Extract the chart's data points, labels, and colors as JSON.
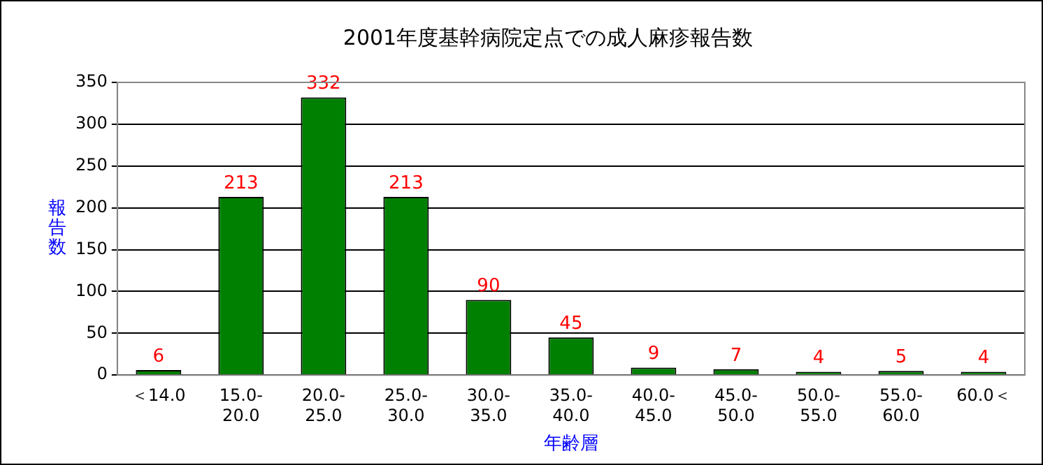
{
  "chart_data": {
    "type": "bar",
    "title": "2001年度基幹病院定点での成人麻疹報告数",
    "xlabel": "年齢層",
    "ylabel": "報告数",
    "categories": [
      "＜14.0",
      "15.0-\n20.0",
      "20.0-\n25.0",
      "25.0-\n30.0",
      "30.0-\n35.0",
      "35.0-\n40.0",
      "40.0-\n45.0",
      "45.0-\n50.0",
      "50.0-\n55.0",
      "55.0-\n60.0",
      "60.0＜"
    ],
    "values": [
      6,
      213,
      332,
      213,
      90,
      45,
      9,
      7,
      4,
      5,
      4
    ],
    "color": "#008000",
    "ylim": [
      0,
      350
    ],
    "yticks": [
      0,
      50,
      100,
      150,
      200,
      250,
      300,
      350
    ],
    "grid": "y",
    "data_labels": true,
    "legend": false
  }
}
